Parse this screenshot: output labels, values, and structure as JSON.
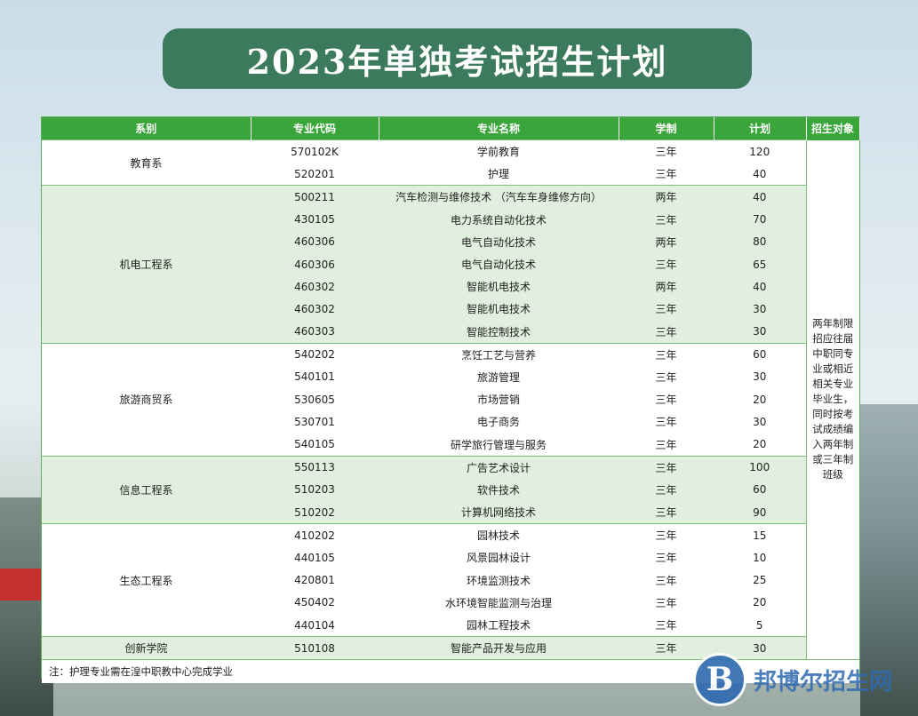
{
  "title": "2023年单独考试招生计划",
  "headers": [
    "系别",
    "专业代码",
    "专业名称",
    "学制",
    "计划",
    "招生对象"
  ],
  "target_note": "两年制限招应往届中职同专业或相近相关专业毕业生，同时按考试成绩编入两年制或三年制班级",
  "departments": [
    {
      "name": "教育系",
      "rows": [
        {
          "code": "570102K",
          "major": "学前教育",
          "years": "三年",
          "plan": "120"
        },
        {
          "code": "520201",
          "major": "护理",
          "years": "三年",
          "plan": "40"
        }
      ]
    },
    {
      "name": "机电工程系",
      "rows": [
        {
          "code": "500211",
          "major": "汽车检测与维修技术 （汽车车身维修方向）",
          "years": "两年",
          "plan": "40"
        },
        {
          "code": "430105",
          "major": "电力系统自动化技术",
          "years": "三年",
          "plan": "70"
        },
        {
          "code": "460306",
          "major": "电气自动化技术",
          "years": "两年",
          "plan": "80"
        },
        {
          "code": "460306",
          "major": "电气自动化技术",
          "years": "三年",
          "plan": "65"
        },
        {
          "code": "460302",
          "major": "智能机电技术",
          "years": "两年",
          "plan": "40"
        },
        {
          "code": "460302",
          "major": "智能机电技术",
          "years": "三年",
          "plan": "30"
        },
        {
          "code": "460303",
          "major": "智能控制技术",
          "years": "三年",
          "plan": "30"
        }
      ]
    },
    {
      "name": "旅游商贸系",
      "rows": [
        {
          "code": "540202",
          "major": "烹饪工艺与营养",
          "years": "三年",
          "plan": "60"
        },
        {
          "code": "540101",
          "major": "旅游管理",
          "years": "三年",
          "plan": "30"
        },
        {
          "code": "530605",
          "major": "市场营销",
          "years": "三年",
          "plan": "20"
        },
        {
          "code": "530701",
          "major": "电子商务",
          "years": "三年",
          "plan": "30"
        },
        {
          "code": "540105",
          "major": "研学旅行管理与服务",
          "years": "三年",
          "plan": "20"
        }
      ]
    },
    {
      "name": "信息工程系",
      "rows": [
        {
          "code": "550113",
          "major": "广告艺术设计",
          "years": "三年",
          "plan": "100"
        },
        {
          "code": "510203",
          "major": "软件技术",
          "years": "三年",
          "plan": "60"
        },
        {
          "code": "510202",
          "major": "计算机网络技术",
          "years": "三年",
          "plan": "90"
        }
      ]
    },
    {
      "name": "生态工程系",
      "rows": [
        {
          "code": "410202",
          "major": "园林技术",
          "years": "三年",
          "plan": "15"
        },
        {
          "code": "440105",
          "major": "风景园林设计",
          "years": "三年",
          "plan": "10"
        },
        {
          "code": "420801",
          "major": "环境监测技术",
          "years": "三年",
          "plan": "25"
        },
        {
          "code": "450402",
          "major": "水环境智能监测与治理",
          "years": "三年",
          "plan": "20"
        },
        {
          "code": "440104",
          "major": "园林工程技术",
          "years": "三年",
          "plan": "5"
        }
      ]
    },
    {
      "name": "创新学院",
      "rows": [
        {
          "code": "510108",
          "major": "智能产品开发与应用",
          "years": "三年",
          "plan": "30"
        }
      ]
    }
  ],
  "footnote": "注：护理专业需在湟中职教中心完成学业",
  "watermark": {
    "logo_letter": "B",
    "text": "邦博尔招生网"
  }
}
